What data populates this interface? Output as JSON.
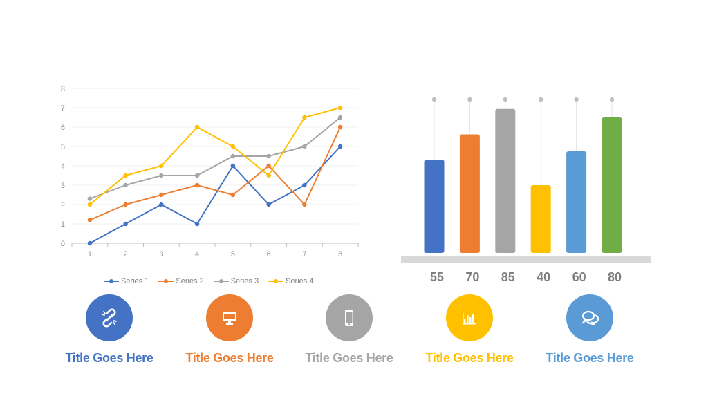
{
  "chart_data": [
    {
      "type": "line",
      "x": [
        1,
        2,
        3,
        4,
        5,
        6,
        7,
        8
      ],
      "xticks": [
        "1",
        "2",
        "3",
        "4",
        "5",
        "6",
        "7",
        "8"
      ],
      "yticks": [
        "0",
        "1",
        "2",
        "3",
        "4",
        "5",
        "6",
        "7",
        "8"
      ],
      "ylim": [
        0,
        8
      ],
      "grid": true,
      "legend": "bottom",
      "series": [
        {
          "name": "Series 1",
          "color": "#4472c4",
          "values": [
            0,
            1,
            2,
            1,
            4,
            2,
            3,
            5
          ]
        },
        {
          "name": "Series 2",
          "color": "#ed7d31",
          "values": [
            1.2,
            2,
            2.5,
            3,
            2.5,
            4,
            2,
            6
          ]
        },
        {
          "name": "Series 3",
          "color": "#a5a5a5",
          "values": [
            2.3,
            3,
            3.5,
            3.5,
            4.5,
            4.5,
            5,
            6.5
          ]
        },
        {
          "name": "Series 4",
          "color": "#ffc000",
          "values": [
            2,
            3.5,
            4,
            6,
            5,
            3.5,
            6.5,
            7
          ]
        }
      ]
    },
    {
      "type": "bar",
      "values": [
        55,
        70,
        85,
        40,
        60,
        80
      ],
      "value_labels": [
        "55",
        "70",
        "85",
        "40",
        "60",
        "80"
      ],
      "colors": [
        "#4472c4",
        "#ed7d31",
        "#a5a5a5",
        "#ffc000",
        "#5b9bd5",
        "#70ad47"
      ],
      "ylim": [
        0,
        100
      ]
    }
  ],
  "features": [
    {
      "title": "Title Goes Here",
      "color": "#4472c4",
      "icon": "broken-link-icon"
    },
    {
      "title": "Title Goes Here",
      "color": "#ed7d31",
      "icon": "monitor-icon"
    },
    {
      "title": "Title Goes Here",
      "color": "#a5a5a5",
      "icon": "smartphone-icon"
    },
    {
      "title": "Title Goes Here",
      "color": "#ffc000",
      "icon": "bar-chart-icon"
    },
    {
      "title": "Title Goes Here",
      "color": "#5b9bd5",
      "icon": "chat-bubbles-icon"
    }
  ]
}
